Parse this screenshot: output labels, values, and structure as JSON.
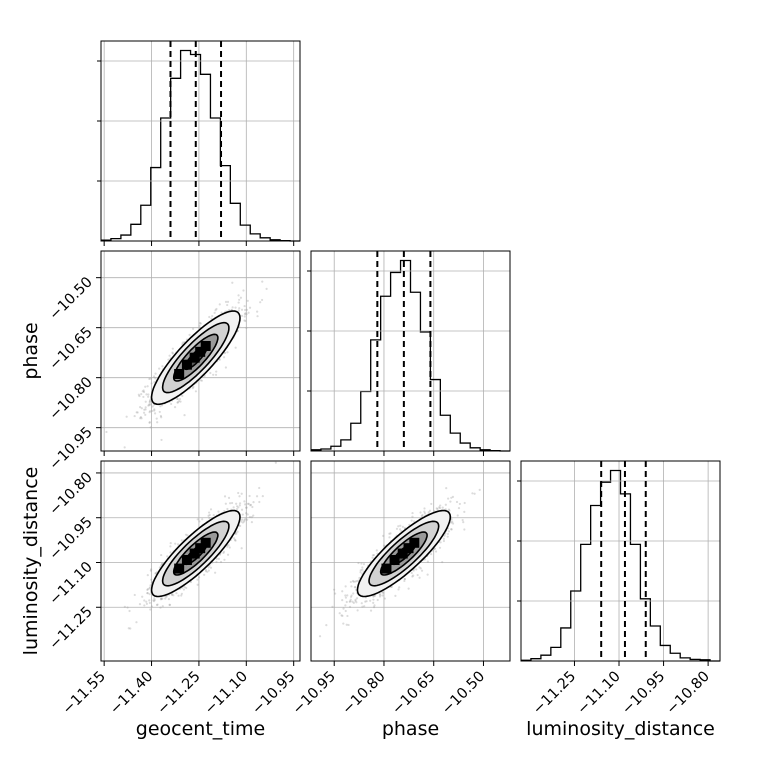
{
  "chart_data": {
    "type": "corner",
    "parameters": [
      "geocent_time",
      "phase",
      "luminosity_distance"
    ],
    "grid": true,
    "ranges": {
      "geocent_time": [
        -11.56,
        -10.93
      ],
      "phase": [
        -11.02,
        -10.42
      ],
      "luminosity_distance": [
        -11.43,
        -10.76
      ]
    },
    "ticks": {
      "geocent_time": [
        -11.55,
        -11.4,
        -11.25,
        -11.1,
        -10.95
      ],
      "phase": [
        -10.95,
        -10.8,
        -10.65,
        -10.5
      ],
      "luminosity_distance": [
        -11.25,
        -11.1,
        -10.95,
        -10.8
      ]
    },
    "tick_labels": {
      "geocent_time": [
        "−11.55",
        "−11.40",
        "−11.25",
        "−11.10",
        "−10.95"
      ],
      "phase": [
        "−10.95",
        "−10.80",
        "−10.65",
        "−10.50"
      ],
      "luminosity_distance": [
        "−11.25",
        "−11.10",
        "−10.95",
        "−10.80"
      ]
    },
    "quantile_lines": {
      "geocent_time": [
        -11.34,
        -11.26,
        -11.18
      ],
      "phase": [
        -10.82,
        -10.74,
        -10.66
      ],
      "luminosity_distance": [
        -11.16,
        -11.08,
        -11.01
      ]
    },
    "histograms": {
      "geocent_time": {
        "bin_edges": [
          -11.56,
          -11.5285,
          -11.497,
          -11.4655,
          -11.434,
          -11.4025,
          -11.371,
          -11.3395,
          -11.308,
          -11.2765,
          -11.245,
          -11.2135,
          -11.182,
          -11.1505,
          -11.119,
          -11.0875,
          -11.056,
          -11.0245,
          -10.993,
          -10.9615,
          -10.93
        ],
        "counts": [
          2,
          6,
          15,
          42,
          90,
          185,
          310,
          410,
          480,
          470,
          420,
          310,
          190,
          95,
          40,
          18,
          8,
          3,
          1,
          0
        ]
      },
      "phase": {
        "bin_edges": [
          -11.02,
          -10.99,
          -10.96,
          -10.93,
          -10.9,
          -10.87,
          -10.84,
          -10.81,
          -10.78,
          -10.75,
          -10.72,
          -10.69,
          -10.66,
          -10.63,
          -10.6,
          -10.57,
          -10.54,
          -10.51,
          -10.48,
          -10.45,
          -10.42
        ],
        "counts": [
          3,
          5,
          12,
          28,
          70,
          150,
          280,
          390,
          450,
          480,
          400,
          300,
          180,
          90,
          45,
          20,
          8,
          3,
          1,
          0
        ]
      },
      "luminosity_distance": {
        "bin_edges": [
          -11.43,
          -11.3965,
          -11.363,
          -11.3295,
          -11.296,
          -11.2625,
          -11.229,
          -11.1955,
          -11.162,
          -11.1285,
          -11.095,
          -11.0615,
          -11.028,
          -10.9945,
          -10.961,
          -10.9275,
          -10.894,
          -10.8605,
          -10.827,
          -10.7935,
          -10.76
        ],
        "counts": [
          2,
          6,
          15,
          35,
          85,
          180,
          300,
          400,
          460,
          490,
          430,
          300,
          160,
          90,
          40,
          20,
          8,
          4,
          3,
          0
        ]
      }
    },
    "scatter_2d": [
      {
        "x": "geocent_time",
        "y": "phase",
        "mean": [
          -11.26,
          -10.74
        ],
        "std": [
          0.07,
          0.07
        ],
        "corr": 0.85
      },
      {
        "x": "geocent_time",
        "y": "luminosity_distance",
        "mean": [
          -11.26,
          -11.07
        ],
        "std": [
          0.07,
          0.072
        ],
        "corr": 0.85
      },
      {
        "x": "phase",
        "y": "luminosity_distance",
        "mean": [
          -10.74,
          -11.07
        ],
        "std": [
          0.07,
          0.072
        ],
        "corr": 0.85
      }
    ],
    "contour_levels_sigma": [
      0.5,
      1.0,
      1.5,
      2.0
    ],
    "colors": {
      "line": "#000000",
      "points": "#9a9a9a",
      "grid": "#b0b0b0"
    }
  }
}
